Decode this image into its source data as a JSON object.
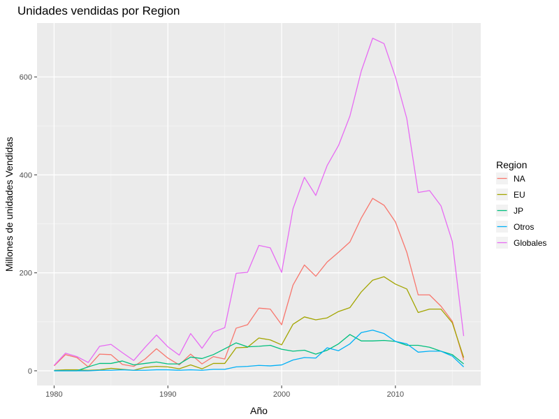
{
  "chart_data": {
    "type": "line",
    "title": "Unidades vendidas por Region",
    "xlabel": "Año",
    "ylabel": "Millones de unidades Vendidas",
    "xlim": [
      1978.5,
      2017.5
    ],
    "ylim": [
      -30,
      710
    ],
    "x_ticks": [
      1980,
      1990,
      2000,
      2010
    ],
    "x_tick_labels": [
      "1980",
      "1990",
      "2000",
      "2010"
    ],
    "y_ticks": [
      0,
      200,
      400,
      600
    ],
    "y_tick_labels": [
      "0",
      "200",
      "400",
      "600"
    ],
    "grid": true,
    "legend_title": "Region",
    "legend_position": "right",
    "x": [
      1980,
      1981,
      1982,
      1983,
      1984,
      1985,
      1986,
      1987,
      1988,
      1989,
      1990,
      1991,
      1992,
      1993,
      1994,
      1995,
      1996,
      1997,
      1998,
      1999,
      2000,
      2001,
      2002,
      2003,
      2004,
      2005,
      2006,
      2007,
      2008,
      2009,
      2010,
      2011,
      2012,
      2013,
      2014,
      2015,
      2016
    ],
    "series": [
      {
        "name": "NA",
        "color": "#F8766D",
        "values": [
          10,
          33,
          27,
          8,
          34,
          33,
          13,
          9,
          24,
          45,
          26,
          12,
          34,
          14,
          29,
          24,
          87,
          94,
          128,
          126,
          94,
          175,
          216,
          193,
          222,
          242,
          263,
          312,
          352,
          338,
          304,
          242,
          155,
          155,
          132,
          101,
          22
        ]
      },
      {
        "name": "EU",
        "color": "#A3A500",
        "values": [
          1,
          2,
          2,
          1,
          2,
          5,
          3,
          1,
          7,
          9,
          8,
          4,
          12,
          4,
          15,
          15,
          47,
          48,
          67,
          63,
          53,
          95,
          110,
          104,
          108,
          121,
          129,
          161,
          185,
          192,
          177,
          167,
          119,
          126,
          126,
          98,
          27
        ]
      },
      {
        "name": "JP",
        "color": "#00BF7D",
        "values": [
          0,
          0,
          0,
          8,
          15,
          15,
          20,
          12,
          15,
          18,
          14,
          14,
          28,
          25,
          33,
          45,
          57,
          49,
          50,
          52,
          44,
          40,
          42,
          34,
          42,
          55,
          74,
          61,
          61,
          62,
          60,
          52,
          52,
          48,
          40,
          33,
          14
        ]
      },
      {
        "name": "Otros",
        "color": "#00B0F6",
        "values": [
          0,
          0,
          0,
          0,
          1,
          1,
          2,
          1,
          1,
          2,
          2,
          1,
          2,
          1,
          3,
          3,
          8,
          9,
          11,
          10,
          12,
          22,
          27,
          26,
          47,
          41,
          55,
          78,
          83,
          76,
          60,
          55,
          38,
          40,
          40,
          30,
          8
        ]
      },
      {
        "name": "Globales",
        "color": "#E76BF3",
        "values": [
          11,
          36,
          29,
          17,
          50,
          54,
          37,
          21,
          48,
          73,
          49,
          32,
          76,
          46,
          79,
          88,
          199,
          201,
          256,
          251,
          201,
          331,
          395,
          358,
          419,
          460,
          520,
          612,
          679,
          668,
          600,
          515,
          364,
          368,
          337,
          264,
          71
        ]
      }
    ]
  }
}
